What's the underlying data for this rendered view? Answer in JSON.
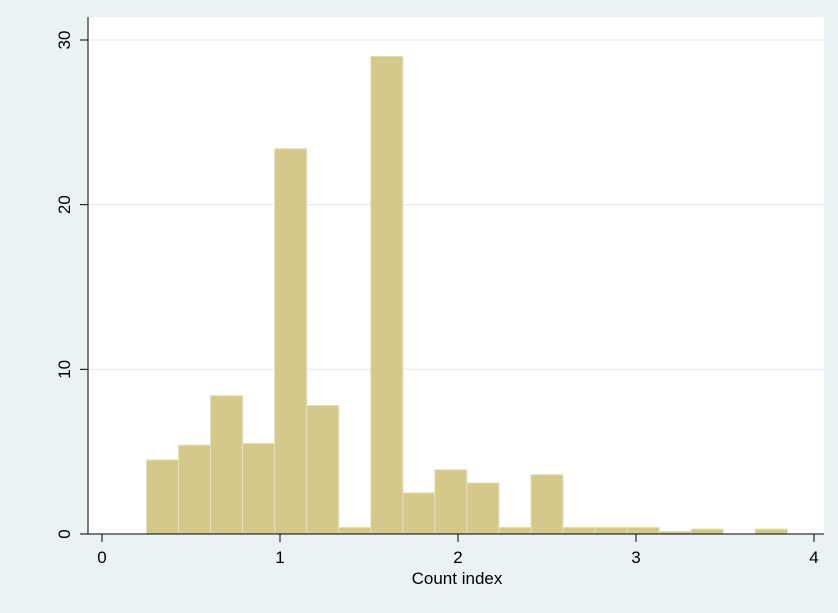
{
  "chart_data": {
    "type": "bar",
    "title": "",
    "xlabel": "Count index",
    "ylabel": "",
    "xlim": [
      0,
      4
    ],
    "ylim": [
      0,
      30
    ],
    "x_ticks": [
      {
        "value": 0,
        "label": "0"
      },
      {
        "value": 1,
        "label": "1"
      },
      {
        "value": 2,
        "label": "2"
      },
      {
        "value": 3,
        "label": "3"
      },
      {
        "value": 4,
        "label": "4"
      }
    ],
    "y_ticks": [
      {
        "value": 0,
        "label": "0"
      },
      {
        "value": 10,
        "label": "10"
      },
      {
        "value": 20,
        "label": "20"
      },
      {
        "value": 30,
        "label": "30"
      }
    ],
    "grid": true,
    "legend": "none",
    "bins": [
      {
        "x0": 0.25,
        "x1": 0.43,
        "value": 4.5
      },
      {
        "x0": 0.43,
        "x1": 0.61,
        "value": 5.4
      },
      {
        "x0": 0.61,
        "x1": 0.79,
        "value": 8.4
      },
      {
        "x0": 0.79,
        "x1": 0.97,
        "value": 5.5
      },
      {
        "x0": 0.97,
        "x1": 1.15,
        "value": 23.4
      },
      {
        "x0": 1.15,
        "x1": 1.33,
        "value": 7.8
      },
      {
        "x0": 1.33,
        "x1": 1.51,
        "value": 0.4
      },
      {
        "x0": 1.51,
        "x1": 1.69,
        "value": 29.0
      },
      {
        "x0": 1.69,
        "x1": 1.87,
        "value": 2.5
      },
      {
        "x0": 1.87,
        "x1": 2.05,
        "value": 3.9
      },
      {
        "x0": 2.05,
        "x1": 2.23,
        "value": 3.1
      },
      {
        "x0": 2.23,
        "x1": 2.41,
        "value": 0.4
      },
      {
        "x0": 2.41,
        "x1": 2.59,
        "value": 3.6
      },
      {
        "x0": 2.59,
        "x1": 2.77,
        "value": 0.4
      },
      {
        "x0": 2.77,
        "x1": 2.95,
        "value": 0.4
      },
      {
        "x0": 2.95,
        "x1": 3.13,
        "value": 0.4
      },
      {
        "x0": 3.13,
        "x1": 3.31,
        "value": 0.15
      },
      {
        "x0": 3.31,
        "x1": 3.49,
        "value": 0.3
      },
      {
        "x0": 3.49,
        "x1": 3.67,
        "value": 0
      },
      {
        "x0": 3.67,
        "x1": 3.85,
        "value": 0.3
      }
    ],
    "colors": {
      "background": "#eaf2f3",
      "plot_background": "#ffffff",
      "bar_fill": "#d4c88b",
      "bar_edge": "#e4dfbd",
      "grid": "#e3eef0",
      "axis": "#000000"
    }
  }
}
